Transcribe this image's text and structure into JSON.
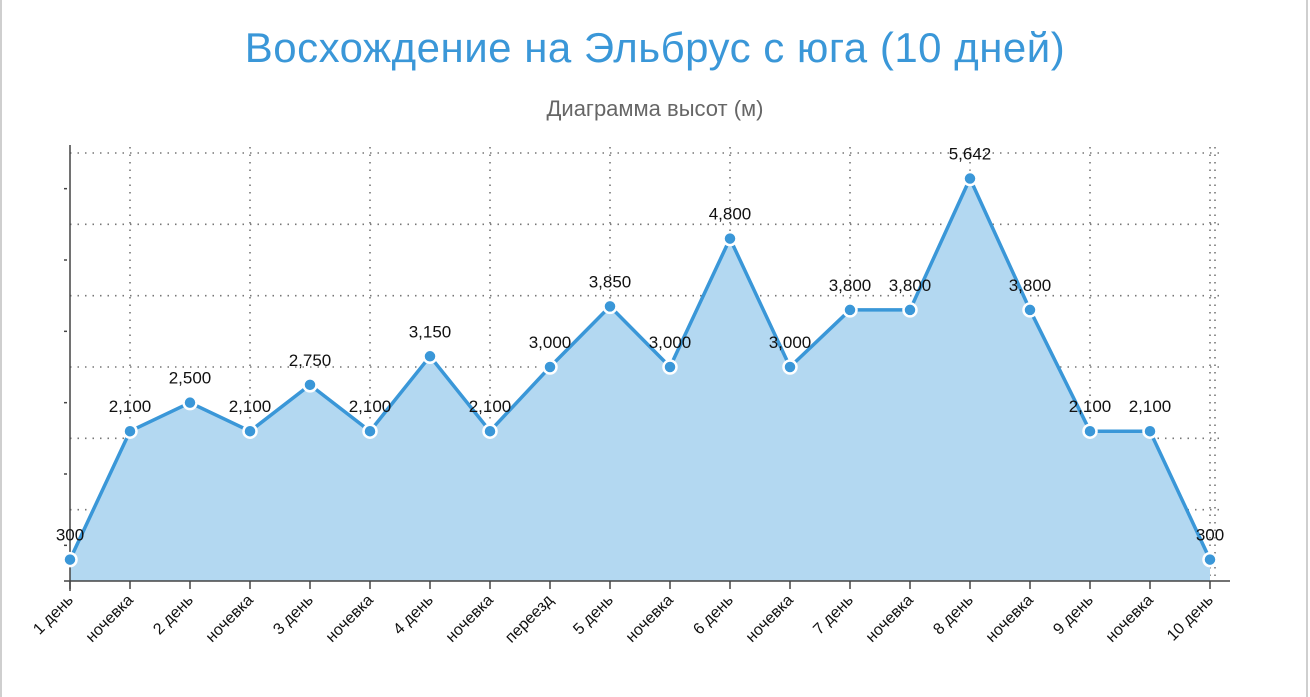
{
  "chart_data": {
    "type": "area",
    "title": "Восхождение на Эльбрус с юга (10 дней)",
    "subtitle": "Диаграмма высот (м)",
    "categories": [
      "1 день",
      "ночевка",
      "2 день",
      "ночевка",
      "3 день",
      "ночевка",
      "4 день",
      "ночевка",
      "переезд",
      "5 день",
      "ночевка",
      "6 день",
      "ночевка",
      "7 день",
      "ночевка",
      "8 день",
      "ночевка",
      "9 день",
      "ночевка",
      "10 день"
    ],
    "values": [
      300,
      2100,
      2500,
      2100,
      2750,
      2100,
      3150,
      2100,
      3000,
      3850,
      3000,
      4800,
      3000,
      3800,
      3800,
      5642,
      3800,
      2100,
      2100,
      300
    ],
    "labels": [
      "300",
      "2,100",
      "2,500",
      "2,100",
      "2,750",
      "2,100",
      "3,150",
      "2,100",
      "3,000",
      "3,850",
      "3,000",
      "4,800",
      "3,000",
      "3,800",
      "3,800",
      "5,642",
      "3,800",
      "2,100",
      "2,100",
      "300"
    ],
    "ylim": [
      0,
      6000
    ],
    "grid": true,
    "colors": {
      "line": "#3a97d8",
      "fill": "#b3d8f1",
      "title": "#3a97d8",
      "subtitle": "#666666"
    }
  }
}
